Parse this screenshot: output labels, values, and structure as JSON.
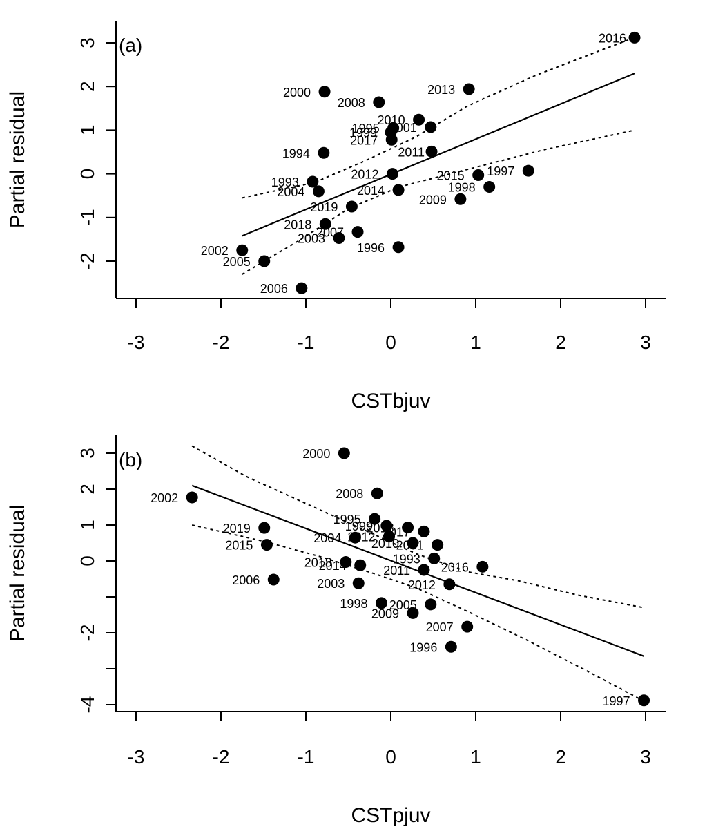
{
  "chart_data": [
    {
      "type": "scatter",
      "panel_label": "(a)",
      "xlabel": "CSTbjuv",
      "ylabel": "Partial residual",
      "xlim": [
        -3.25,
        3.25
      ],
      "ylim": [
        -2.85,
        3.25
      ],
      "xticks": [
        -3,
        -2,
        -1,
        0,
        1,
        2,
        3
      ],
      "yticks": [
        -2,
        -1,
        0,
        1,
        2,
        3
      ],
      "points": [
        {
          "label": "2016",
          "x": 2.87,
          "y": 3.12
        },
        {
          "label": "2000",
          "x": -0.78,
          "y": 1.88
        },
        {
          "label": "2008",
          "x": -0.14,
          "y": 1.64
        },
        {
          "label": "2013",
          "x": 0.92,
          "y": 1.94
        },
        {
          "label": "2010",
          "x": 0.33,
          "y": 1.24
        },
        {
          "label": "2001",
          "x": 0.47,
          "y": 1.07
        },
        {
          "label": "1995",
          "x": 0.03,
          "y": 1.05
        },
        {
          "label": "1999",
          "x": 0.0,
          "y": 0.95
        },
        {
          "label": "2017",
          "x": 0.01,
          "y": 0.78
        },
        {
          "label": "1994",
          "x": -0.79,
          "y": 0.48
        },
        {
          "label": "2011",
          "x": 0.48,
          "y": 0.51
        },
        {
          "label": "2012",
          "x": 0.02,
          "y": 0.0
        },
        {
          "label": "1993",
          "x": -0.92,
          "y": -0.18
        },
        {
          "label": "2004",
          "x": -0.85,
          "y": -0.4
        },
        {
          "label": "2014",
          "x": 0.09,
          "y": -0.37
        },
        {
          "label": "2015",
          "x": 1.03,
          "y": -0.03
        },
        {
          "label": "1997",
          "x": 1.62,
          "y": 0.07
        },
        {
          "label": "1998",
          "x": 1.16,
          "y": -0.3
        },
        {
          "label": "2009",
          "x": 0.82,
          "y": -0.58
        },
        {
          "label": "2019",
          "x": -0.46,
          "y": -0.75
        },
        {
          "label": "2018",
          "x": -0.77,
          "y": -1.15
        },
        {
          "label": "2007",
          "x": -0.39,
          "y": -1.33
        },
        {
          "label": "2003",
          "x": -0.61,
          "y": -1.47
        },
        {
          "label": "1996",
          "x": 0.09,
          "y": -1.68
        },
        {
          "label": "2002",
          "x": -1.75,
          "y": -1.75
        },
        {
          "label": "2005",
          "x": -1.49,
          "y": -2.0
        },
        {
          "label": "2006",
          "x": -1.05,
          "y": -2.62
        }
      ],
      "fit_line": [
        [
          -1.75,
          -1.42
        ],
        [
          2.87,
          2.3
        ]
      ],
      "confidence_band": {
        "upper": [
          [
            -1.75,
            -0.55
          ],
          [
            -0.9,
            -0.2
          ],
          [
            -0.3,
            0.3
          ],
          [
            0.3,
            0.85
          ],
          [
            0.9,
            1.55
          ],
          [
            1.7,
            2.25
          ],
          [
            2.5,
            2.85
          ],
          [
            2.87,
            3.12
          ]
        ],
        "lower": [
          [
            -1.75,
            -2.3
          ],
          [
            -1.1,
            -1.55
          ],
          [
            -0.5,
            -0.8
          ],
          [
            0.1,
            -0.3
          ],
          [
            0.9,
            0.1
          ],
          [
            1.8,
            0.55
          ],
          [
            2.87,
            1.0
          ]
        ]
      }
    },
    {
      "type": "scatter",
      "panel_label": "(b)",
      "xlabel": "CSTpjuv",
      "ylabel": "Partial residual",
      "xlim": [
        -3.25,
        3.25
      ],
      "ylim": [
        -4.2,
        3.3
      ],
      "xticks": [
        -3,
        -2,
        -1,
        0,
        1,
        2,
        3
      ],
      "yticks": [
        -4,
        -2,
        0,
        2
      ],
      "ytick_labels": [
        "-4",
        "-2",
        "0",
        "2"
      ],
      "extra_yticks": [
        3,
        1,
        -1,
        -3
      ],
      "extra_ytick_labels": [
        "3",
        "1",
        "",
        ""
      ],
      "points": [
        {
          "label": "2000",
          "x": -0.55,
          "y": 3.0
        },
        {
          "label": "2002",
          "x": -2.34,
          "y": 1.77
        },
        {
          "label": "2008",
          "x": -0.16,
          "y": 1.88
        },
        {
          "label": "1995",
          "x": -0.19,
          "y": 1.17
        },
        {
          "label": "1999",
          "x": -0.05,
          "y": 0.98
        },
        {
          "label": "2013",
          "x": 0.2,
          "y": 0.93
        },
        {
          "label": "2017",
          "x": 0.39,
          "y": 0.82
        },
        {
          "label": "2019",
          "x": -1.49,
          "y": 0.92
        },
        {
          "label": "2004",
          "x": -0.42,
          "y": 0.65
        },
        {
          "label": "2012",
          "x": -0.02,
          "y": 0.68
        },
        {
          "label": "2010",
          "x": 0.26,
          "y": 0.5
        },
        {
          "label": "2001",
          "x": 0.55,
          "y": 0.45
        },
        {
          "label": "2015",
          "x": -1.46,
          "y": 0.45
        },
        {
          "label": "1993",
          "x": 0.51,
          "y": 0.07
        },
        {
          "label": "2018",
          "x": -0.53,
          "y": -0.03
        },
        {
          "label": "2014",
          "x": -0.36,
          "y": -0.12
        },
        {
          "label": "2011",
          "x": 0.39,
          "y": -0.25
        },
        {
          "label": "2016",
          "x": 1.08,
          "y": -0.16
        },
        {
          "label": "2006",
          "x": -1.38,
          "y": -0.52
        },
        {
          "label": "2003",
          "x": -0.38,
          "y": -0.62
        },
        {
          "label": "2012",
          "x": 0.69,
          "y": -0.65
        },
        {
          "label": "1998",
          "x": -0.11,
          "y": -1.17
        },
        {
          "label": "2005",
          "x": 0.47,
          "y": -1.21
        },
        {
          "label": "2009",
          "x": 0.26,
          "y": -1.45
        },
        {
          "label": "2007",
          "x": 0.9,
          "y": -1.83
        },
        {
          "label": "1996",
          "x": 0.71,
          "y": -2.39
        },
        {
          "label": "1997",
          "x": 2.98,
          "y": -3.88
        }
      ],
      "fit_line": [
        [
          -2.34,
          2.1
        ],
        [
          2.98,
          -2.65
        ]
      ],
      "confidence_band": {
        "upper": [
          [
            -2.34,
            3.2
          ],
          [
            -1.7,
            2.35
          ],
          [
            -1.0,
            1.6
          ],
          [
            -0.3,
            0.85
          ],
          [
            0.3,
            0.2
          ],
          [
            0.9,
            -0.3
          ],
          [
            1.5,
            -0.55
          ],
          [
            2.2,
            -0.95
          ],
          [
            2.98,
            -1.3
          ]
        ],
        "lower": [
          [
            -2.34,
            1.0
          ],
          [
            -1.5,
            0.55
          ],
          [
            -0.8,
            0.1
          ],
          [
            -0.2,
            -0.35
          ],
          [
            0.3,
            -0.75
          ],
          [
            0.9,
            -1.4
          ],
          [
            1.6,
            -2.2
          ],
          [
            2.3,
            -3.05
          ],
          [
            2.98,
            -3.9
          ]
        ]
      }
    }
  ]
}
